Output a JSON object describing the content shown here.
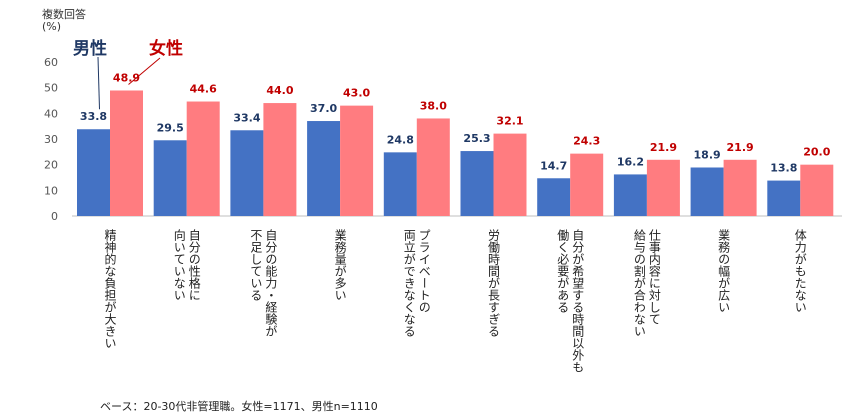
{
  "chart_data": {
    "type": "bar",
    "title": "複数回答",
    "ylabel": "(%)",
    "ylim": [
      0,
      60
    ],
    "yticks": [
      0,
      10,
      20,
      30,
      40,
      50,
      60
    ],
    "grid": false,
    "legend_placement": "top-left, callout labels",
    "categories": [
      "精神的な負担が大きい",
      "自分の性格に向いていない",
      "自分の能力・経験が不足している",
      "業務量が多い",
      "プライベートの両立ができなくなる",
      "労働時間が長すぎる",
      "自分が希望する時間以外も働く必要がある",
      "仕事内容に対して給与の割が合わない",
      "業務の幅が広い",
      "体力がもたない"
    ],
    "category_lines": [
      [
        "精神的な負担が大きい"
      ],
      [
        "自分の性格に",
        "向いていない"
      ],
      [
        "自分の能力・経験が",
        "不足している"
      ],
      [
        "業務量が多い"
      ],
      [
        "プライベートの",
        "両立ができなくなる"
      ],
      [
        "労働時間が長すぎる"
      ],
      [
        "自分が希望する時間以外も",
        "働く必要がある"
      ],
      [
        "仕事内容に対して",
        "給与の割が合わない"
      ],
      [
        "業務の幅が広い"
      ],
      [
        "体力がもたない"
      ]
    ],
    "series": [
      {
        "name": "男性",
        "color": "#4472c4",
        "label_color": "#1f3864",
        "values": [
          33.8,
          29.5,
          33.4,
          37.0,
          24.8,
          25.3,
          14.7,
          16.2,
          18.9,
          13.8
        ]
      },
      {
        "name": "女性",
        "color": "#ff7c80",
        "label_color": "#c00000",
        "values": [
          48.9,
          44.6,
          44.0,
          43.0,
          38.0,
          32.1,
          24.3,
          21.9,
          21.9,
          20.0
        ]
      }
    ],
    "note": "ベース：20-30代非管理職。女性=1171、男性n=1110"
  }
}
